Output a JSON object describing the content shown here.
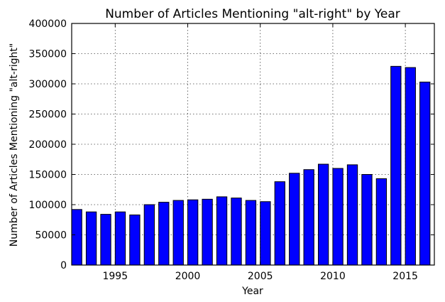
{
  "chart_data": {
    "type": "bar",
    "title": "Number of Articles Mentioning \"alt-right\" by Year",
    "xlabel": "Year",
    "ylabel": "Number of Articles Mentioning \"alt-right\"",
    "x": [
      1992,
      1993,
      1994,
      1995,
      1996,
      1997,
      1998,
      1999,
      2000,
      2001,
      2002,
      2003,
      2004,
      2005,
      2006,
      2007,
      2008,
      2009,
      2010,
      2011,
      2012,
      2013,
      2014,
      2015,
      2016
    ],
    "values": [
      92000,
      88000,
      84000,
      88000,
      83000,
      100000,
      104000,
      107000,
      108000,
      109000,
      113000,
      111000,
      107000,
      105000,
      138000,
      152000,
      158000,
      167000,
      160000,
      166000,
      150000,
      143000,
      329000,
      327000,
      303000
    ],
    "xlim": [
      1992,
      2017
    ],
    "ylim": [
      0,
      400000
    ],
    "xticks": [
      1995,
      2000,
      2005,
      2010,
      2015
    ],
    "yticks": [
      0,
      50000,
      100000,
      150000,
      200000,
      250000,
      300000,
      350000,
      400000
    ],
    "grid": true,
    "bar_color": "#0000ff",
    "edge_color": "#000000"
  }
}
